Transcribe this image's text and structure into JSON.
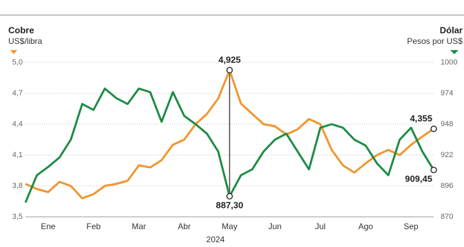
{
  "chart_data": {
    "type": "line",
    "year_label": "2024",
    "left_title": "Cobre",
    "left_unit": "US$/libra",
    "right_title": "Dólar",
    "right_unit": "Pesos por US$",
    "categories": [
      null,
      null,
      "Ene",
      null,
      null,
      null,
      "Feb",
      null,
      null,
      null,
      "Mar",
      null,
      null,
      null,
      "Abr",
      null,
      null,
      null,
      "May",
      null,
      null,
      null,
      "Jun",
      null,
      null,
      null,
      "Jul",
      null,
      null,
      null,
      "Ago",
      null,
      null,
      null,
      "Sep",
      null,
      null
    ],
    "series": [
      {
        "name": "Cobre",
        "color": "#f0962f",
        "values": [
          3.82,
          3.77,
          3.74,
          3.84,
          3.8,
          3.68,
          3.72,
          3.8,
          3.82,
          3.85,
          4.0,
          3.98,
          4.05,
          4.2,
          4.25,
          4.4,
          4.5,
          4.65,
          4.925,
          4.6,
          4.5,
          4.4,
          4.38,
          4.3,
          4.35,
          4.45,
          4.4,
          4.15,
          4.0,
          3.93,
          4.02,
          4.1,
          4.15,
          4.1,
          4.2,
          4.28,
          4.355
        ],
        "value_labels": [
          null,
          null,
          null,
          null,
          null,
          null,
          null,
          null,
          null,
          null,
          null,
          null,
          null,
          null,
          null,
          null,
          null,
          null,
          "4,925",
          null,
          null,
          null,
          null,
          null,
          null,
          null,
          null,
          null,
          null,
          null,
          null,
          null,
          null,
          null,
          null,
          null,
          "4,355"
        ]
      },
      {
        "name": "Dólar",
        "color": "#1e8c45",
        "axis": "y2",
        "values": [
          882,
          905,
          912,
          920,
          935,
          965,
          960,
          978,
          970,
          965,
          978,
          975,
          950,
          975,
          955,
          948,
          940,
          925,
          887.3,
          905,
          910,
          925,
          935,
          940,
          925,
          910,
          945,
          948,
          945,
          935,
          930,
          915,
          905,
          935,
          945,
          925,
          909.45
        ],
        "value_labels": [
          null,
          null,
          null,
          null,
          null,
          null,
          null,
          null,
          null,
          null,
          null,
          null,
          null,
          null,
          null,
          null,
          null,
          null,
          "887,30",
          null,
          null,
          null,
          null,
          null,
          null,
          null,
          null,
          null,
          null,
          null,
          null,
          null,
          null,
          null,
          null,
          null,
          "909,45"
        ]
      }
    ],
    "ylim": [
      3.5,
      5.0
    ],
    "yticks": [
      {
        "value": 3.5,
        "label": "3,5"
      },
      {
        "value": 3.8,
        "label": "3,8"
      },
      {
        "value": 4.1,
        "label": "4,1"
      },
      {
        "value": 4.4,
        "label": "4,4"
      },
      {
        "value": 4.7,
        "label": "4,7"
      },
      {
        "value": 5.0,
        "label": "5,0"
      }
    ],
    "y2lim": [
      870,
      1000
    ],
    "y2ticks": [
      870,
      896,
      922,
      948,
      974,
      1000
    ],
    "grid": true
  }
}
